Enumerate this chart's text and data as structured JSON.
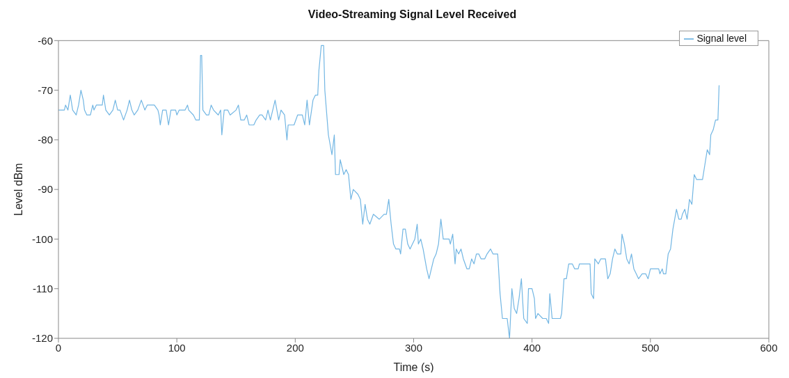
{
  "chart_data": {
    "type": "line",
    "title": "Video-Streaming Signal Level Received",
    "xlabel": "Time (s)",
    "ylabel": "Level dBm",
    "xlim": [
      0,
      600
    ],
    "xticks": [
      0,
      100,
      200,
      300,
      400,
      500,
      600
    ],
    "ylim": [
      -120,
      -60
    ],
    "yticks": [
      -120,
      -110,
      -100,
      -90,
      -80,
      -70,
      -60
    ],
    "grid": false,
    "legend": "top right",
    "marker": "none",
    "line_style": "solid",
    "series": [
      {
        "name": "Signal level",
        "color": "#72b6e3",
        "x": [
          0,
          5,
          6,
          8,
          10,
          12,
          15,
          17,
          19,
          21,
          22,
          24,
          27,
          29,
          30,
          32,
          37,
          38,
          40,
          43,
          46,
          48,
          50,
          52,
          55,
          58,
          60,
          62,
          64,
          67,
          70,
          73,
          75,
          81,
          84,
          85,
          86,
          88,
          91,
          93,
          95,
          99,
          100,
          102,
          107,
          109,
          110,
          114,
          116,
          119,
          120,
          121,
          122,
          125,
          127,
          129,
          131,
          135,
          137,
          138,
          140,
          143,
          145,
          150,
          152,
          154,
          157,
          159,
          161,
          165,
          167,
          170,
          172,
          175,
          177,
          179,
          183,
          186,
          188,
          191,
          193,
          194,
          199,
          202,
          206,
          208,
          210,
          212,
          215,
          217,
          219,
          220,
          222,
          224,
          225,
          227,
          228,
          231,
          233,
          234,
          237,
          238,
          241,
          243,
          245,
          247,
          249,
          253,
          255,
          257,
          259,
          261,
          263,
          266,
          271,
          275,
          277,
          279,
          281,
          283,
          285,
          288,
          289,
          291,
          293,
          295,
          297,
          299,
          301,
          303,
          304,
          306,
          308,
          311,
          313,
          315,
          317,
          319,
          321,
          323,
          325,
          330,
          331,
          333,
          335,
          336,
          338,
          340,
          342,
          345,
          347,
          349,
          351,
          353,
          355,
          357,
          360,
          362,
          365,
          367,
          371,
          373,
          375,
          379,
          381,
          383,
          385,
          387,
          389,
          391,
          393,
          396,
          397,
          400,
          402,
          403,
          405,
          409,
          412,
          414,
          415,
          417,
          424,
          425,
          427,
          429,
          431,
          434,
          436,
          439,
          440,
          449,
          450,
          452,
          453,
          456,
          458,
          462,
          464,
          466,
          468,
          470,
          472,
          475,
          476,
          478,
          480,
          482,
          484,
          486,
          488,
          490,
          493,
          496,
          498,
          500,
          507,
          508,
          510,
          511,
          513,
          514,
          515,
          517,
          519,
          522,
          524,
          526,
          527,
          529,
          531,
          533,
          535,
          537,
          539,
          544,
          546,
          548,
          550,
          551,
          553,
          555,
          557,
          558
        ],
        "values": [
          -74,
          -74,
          -73,
          -74,
          -71,
          -74,
          -75,
          -73,
          -70,
          -72,
          -74,
          -75,
          -75,
          -73,
          -74,
          -73,
          -73,
          -71,
          -74,
          -75,
          -74,
          -72,
          -74,
          -74,
          -76,
          -74,
          -72,
          -74,
          -75,
          -74,
          -72,
          -74,
          -73,
          -73,
          -74,
          -75,
          -77,
          -74,
          -74,
          -77,
          -74,
          -74,
          -75,
          -74,
          -74,
          -73,
          -74,
          -75,
          -76,
          -76,
          -63,
          -63,
          -74,
          -75,
          -75,
          -73,
          -74,
          -75,
          -74,
          -79,
          -74,
          -74,
          -75,
          -74,
          -73,
          -76,
          -76,
          -75,
          -77,
          -77,
          -76,
          -75,
          -75,
          -76,
          -74,
          -76,
          -72,
          -76,
          -74,
          -75,
          -80,
          -77,
          -77,
          -75,
          -75,
          -77,
          -72,
          -77,
          -72,
          -71,
          -71,
          -66,
          -61,
          -61,
          -70,
          -76,
          -79,
          -83,
          -79,
          -87,
          -87,
          -84,
          -87,
          -86,
          -87,
          -92,
          -90,
          -91,
          -92,
          -97,
          -93,
          -96,
          -97,
          -95,
          -96,
          -95,
          -95,
          -92,
          -97,
          -101,
          -102,
          -102,
          -103,
          -98,
          -98,
          -101,
          -102,
          -101,
          -100,
          -97,
          -101,
          -100,
          -102,
          -106,
          -108,
          -106,
          -104,
          -103,
          -101,
          -96,
          -100,
          -100,
          -101,
          -99,
          -105,
          -102,
          -103,
          -102,
          -104,
          -106,
          -106,
          -104,
          -105,
          -103,
          -103,
          -104,
          -104,
          -103,
          -102,
          -103,
          -103,
          -111,
          -116,
          -116,
          -120,
          -110,
          -114,
          -115,
          -112,
          -108,
          -116,
          -117,
          -110,
          -110,
          -112,
          -116,
          -115,
          -116,
          -116,
          -117,
          -111,
          -116,
          -116,
          -115,
          -108,
          -108,
          -105,
          -105,
          -106,
          -106,
          -105,
          -105,
          -111,
          -112,
          -104,
          -105,
          -104,
          -104,
          -108,
          -107,
          -104,
          -102,
          -103,
          -103,
          -99,
          -101,
          -104,
          -105,
          -103,
          -106,
          -107,
          -108,
          -107,
          -107,
          -108,
          -106,
          -106,
          -107,
          -106,
          -107,
          -107,
          -105,
          -103,
          -102,
          -98,
          -94,
          -96,
          -96,
          -95,
          -94,
          -96,
          -92,
          -93,
          -87,
          -88,
          -88,
          -85,
          -82,
          -83,
          -79,
          -78,
          -76,
          -76,
          -69
        ]
      }
    ]
  }
}
